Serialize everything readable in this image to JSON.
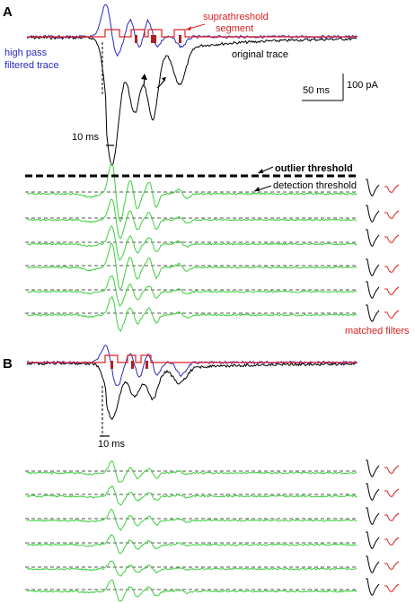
{
  "panels": [
    {
      "label": "A",
      "annotations": {
        "highpass": [
          "high pass",
          "filtered trace"
        ],
        "suprathreshold": [
          "suprathreshold",
          "segment"
        ],
        "original": "original trace",
        "scale_time": "50 ms",
        "scale_amp": "100 pA",
        "window": "10 ms",
        "outlier": "outlier threshold",
        "detection": "detection threshold",
        "matched": "matched filters"
      }
    },
    {
      "label": "B",
      "annotations": {
        "window": "10 ms"
      }
    }
  ],
  "colors": {
    "original": "#000000",
    "highpass": "#2b2bbf",
    "suprathreshold": "#e02020",
    "filtered": "#3ecf3e",
    "detection": "#7f5fa0",
    "outlier": "#000000",
    "template_black": "#000000",
    "template_red": "#e02020"
  },
  "filter_traces": {
    "A_count": 6,
    "B_count": 6
  }
}
